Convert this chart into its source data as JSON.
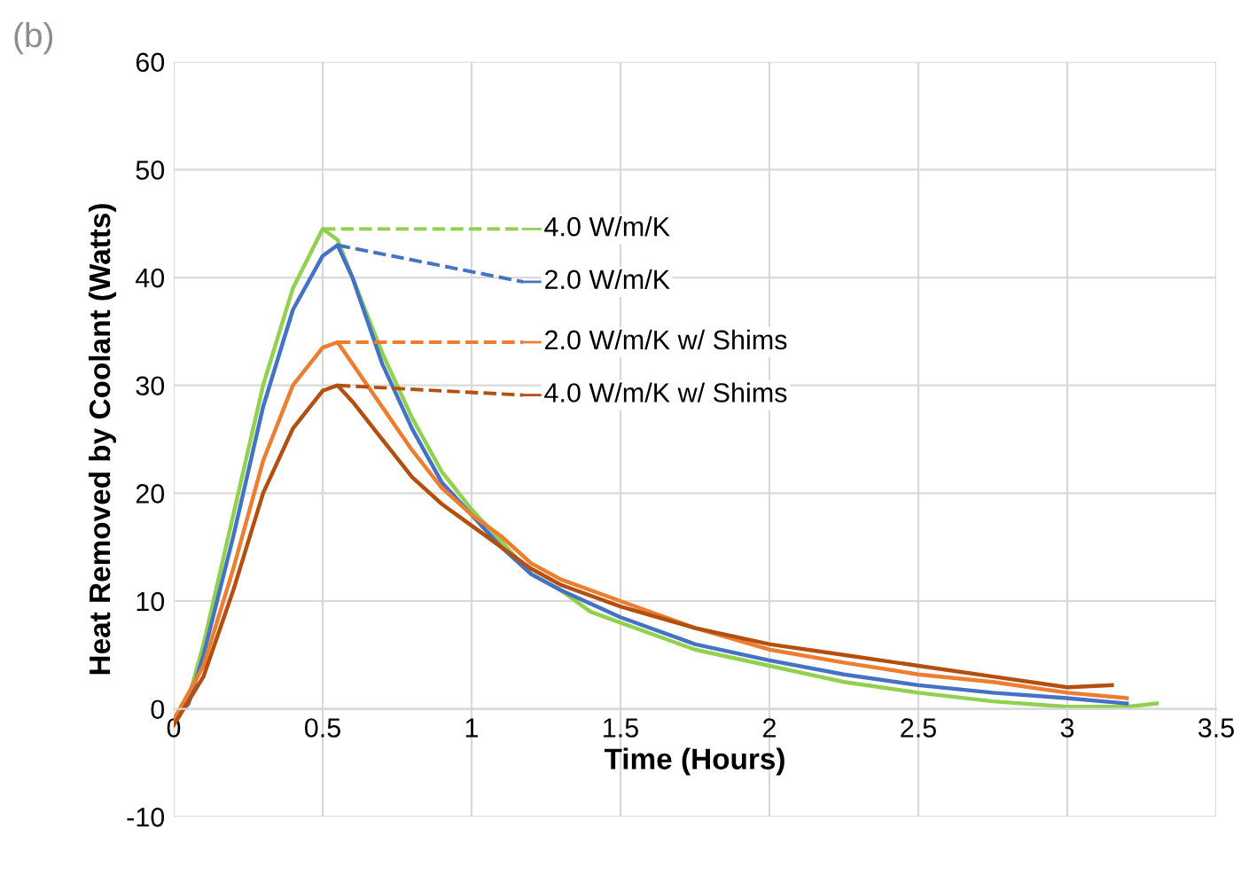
{
  "chart_data": {
    "type": "line",
    "title": "(b)",
    "xlabel": "Time (Hours)",
    "ylabel": "Heat Removed by Coolant (Watts)",
    "xlim": [
      0,
      3.5
    ],
    "xticks": [
      0,
      0.5,
      1,
      1.5,
      2,
      2.5,
      3,
      3.5
    ],
    "ylim": [
      -10,
      60
    ],
    "yticks": [
      -10,
      0,
      10,
      20,
      30,
      40,
      50,
      60
    ],
    "grid": true,
    "legend": "top",
    "series": [
      {
        "name": "4.0 W/m/K",
        "color": "#92d050",
        "x": [
          0,
          0.05,
          0.1,
          0.2,
          0.3,
          0.4,
          0.5,
          0.55,
          0.6,
          0.7,
          0.8,
          0.9,
          1.0,
          1.1,
          1.2,
          1.3,
          1.4,
          1.5,
          1.75,
          2,
          2.25,
          2.5,
          2.75,
          3,
          3.2,
          3.3
        ],
        "values": [
          -1,
          1,
          6,
          18,
          30,
          39,
          44.5,
          43.5,
          40,
          33,
          27,
          22,
          18.5,
          15.5,
          12.5,
          11,
          9,
          8,
          5.5,
          4,
          2.5,
          1.5,
          0.7,
          0.2,
          0.2,
          0.5
        ]
      },
      {
        "name": "2.0 W/m/K",
        "color": "#4472c4",
        "x": [
          0,
          0.05,
          0.1,
          0.2,
          0.3,
          0.4,
          0.5,
          0.55,
          0.6,
          0.7,
          0.8,
          0.9,
          1.0,
          1.1,
          1.2,
          1.3,
          1.5,
          1.75,
          2,
          2.25,
          2.5,
          2.75,
          3,
          3.2
        ],
        "values": [
          -1,
          0.5,
          5,
          16,
          28,
          37,
          42,
          43,
          40,
          32,
          26,
          21,
          18,
          15,
          12.5,
          11,
          8.5,
          6,
          4.5,
          3.2,
          2.2,
          1.5,
          1,
          0.5
        ]
      },
      {
        "name": "2.0 W/m/K w/ Shims",
        "color": "#ed7d31",
        "x": [
          0,
          0.1,
          0.2,
          0.3,
          0.4,
          0.5,
          0.55,
          0.6,
          0.7,
          0.8,
          0.9,
          1.0,
          1.1,
          1.2,
          1.3,
          1.5,
          1.75,
          2,
          2.25,
          2.5,
          2.75,
          3,
          3.2
        ],
        "values": [
          -1,
          4,
          13,
          23,
          30,
          33.5,
          34,
          32,
          28,
          24,
          20.5,
          18,
          16,
          13.5,
          12,
          10,
          7.5,
          5.5,
          4.3,
          3.2,
          2.5,
          1.5,
          1
        ]
      },
      {
        "name": "4.0 W/m/K w/ Shims",
        "color": "#b34f0f",
        "x": [
          0,
          0.1,
          0.2,
          0.3,
          0.4,
          0.5,
          0.55,
          0.6,
          0.7,
          0.8,
          0.9,
          1.0,
          1.1,
          1.2,
          1.3,
          1.5,
          1.75,
          2,
          2.25,
          2.5,
          2.75,
          3,
          3.15
        ],
        "values": [
          -1.5,
          3,
          11,
          20,
          26,
          29.5,
          30,
          28.5,
          25,
          21.5,
          19,
          17,
          15,
          13,
          11.5,
          9.5,
          7.5,
          6,
          5,
          4,
          3,
          2,
          2.2
        ]
      }
    ]
  }
}
